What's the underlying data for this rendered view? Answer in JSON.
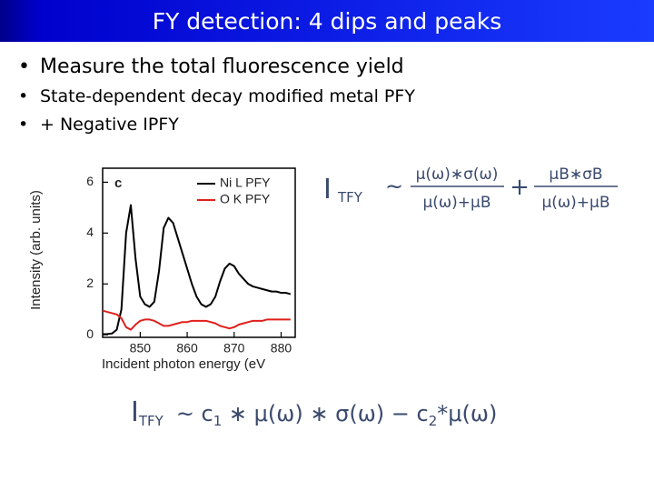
{
  "slide": {
    "title": "FY detection: 4 dips and peaks",
    "bullets": [
      "Measure the total fluorescence yield",
      "State-dependent decay modified metal PFY",
      "+ Negative IPFY"
    ],
    "formula1": {
      "lhs": "I",
      "lhs_sub": "TFY",
      "rel": "~",
      "frac1_num": "μ(ω)∗σ(ω)",
      "frac1_den": "μ(ω)+μB",
      "op": "+",
      "frac2_num": "μB∗σB",
      "frac2_den": "μ(ω)+μB"
    },
    "formula2": {
      "lhs": "I",
      "lhs_sub": "TFY",
      "part1": "~ c",
      "sub1": "1",
      "part2": " ∗  μ(ω) ∗ σ(ω) − c",
      "sub2": "2",
      "part3": "*μ(ω)"
    }
  },
  "chart_data": {
    "type": "line",
    "panel_label": "c",
    "x_label": "Incident photon energy (eV",
    "y_label": "Intensity (arb. units)",
    "x": [
      842,
      843,
      844,
      845,
      846,
      847,
      848,
      849,
      850,
      851,
      852,
      853,
      854,
      855,
      856,
      857,
      858,
      859,
      860,
      861,
      862,
      863,
      864,
      865,
      866,
      867,
      868,
      869,
      870,
      871,
      872,
      873,
      874,
      875,
      876,
      877,
      878,
      879,
      880,
      881,
      882
    ],
    "series": [
      {
        "name": "Ni L PFY",
        "color": "#000000",
        "values": [
          0.02,
          0.03,
          0.05,
          0.2,
          1.0,
          4.0,
          5.1,
          3.0,
          1.5,
          1.2,
          1.1,
          1.3,
          2.5,
          4.2,
          4.6,
          4.4,
          3.8,
          3.2,
          2.6,
          2.0,
          1.5,
          1.2,
          1.1,
          1.2,
          1.5,
          2.1,
          2.6,
          2.8,
          2.7,
          2.4,
          2.2,
          2.0,
          1.9,
          1.85,
          1.8,
          1.75,
          1.7,
          1.7,
          1.65,
          1.65,
          1.6
        ]
      },
      {
        "name": "O K PFY",
        "color": "#e0201c",
        "values": [
          0.95,
          0.9,
          0.85,
          0.8,
          0.65,
          0.3,
          0.2,
          0.4,
          0.55,
          0.6,
          0.6,
          0.55,
          0.45,
          0.35,
          0.35,
          0.4,
          0.45,
          0.5,
          0.5,
          0.55,
          0.55,
          0.55,
          0.55,
          0.5,
          0.45,
          0.35,
          0.3,
          0.25,
          0.3,
          0.4,
          0.45,
          0.5,
          0.55,
          0.55,
          0.55,
          0.6,
          0.6,
          0.6,
          0.6,
          0.6,
          0.6
        ]
      }
    ],
    "xlim": [
      842,
      883
    ],
    "ylim": [
      -0.1,
      6.55
    ],
    "xticks": [
      850,
      860,
      870,
      880
    ],
    "yticks": [
      0,
      2,
      4,
      6
    ],
    "grid": false,
    "legend": "upper right"
  }
}
